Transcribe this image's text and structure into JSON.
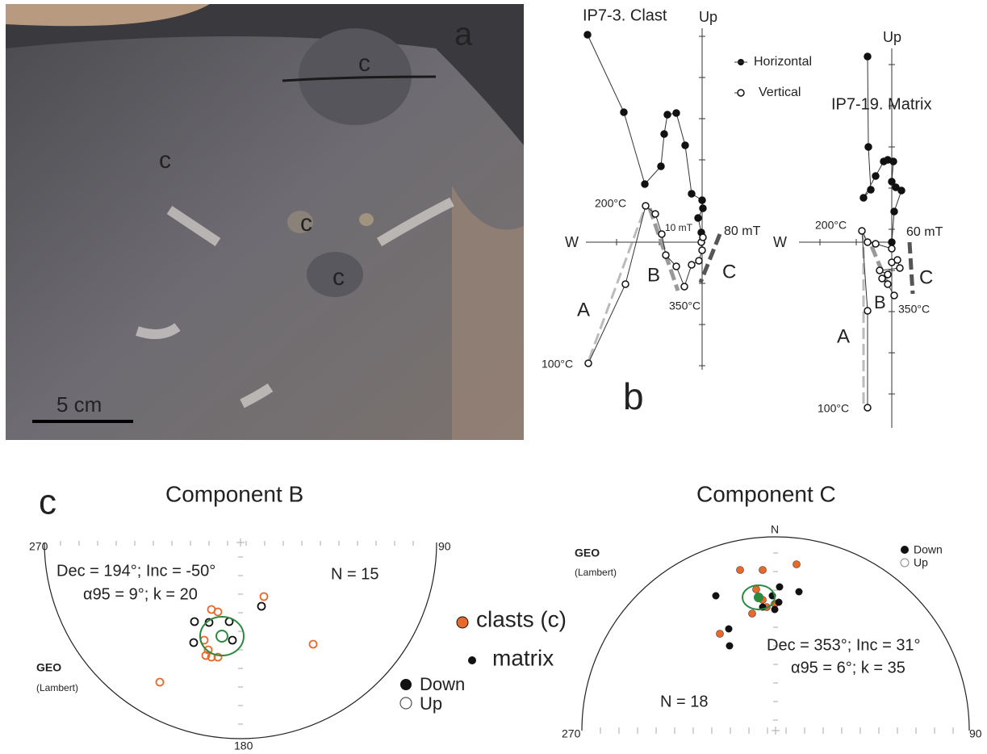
{
  "panel_a": {
    "label": "a",
    "clast_labels": [
      "c",
      "c",
      "c",
      "c"
    ],
    "scale_bar": "5 cm"
  },
  "panel_b": {
    "label": "b",
    "clast_plot": {
      "title": "IP7-3. Clast",
      "up": "Up",
      "west": "W",
      "legend": [
        "Horizontal",
        "Vertical"
      ],
      "labels": {
        "t200": "200°C",
        "mt10": "10 mT",
        "mt80": "80 mT",
        "t350": "350°C",
        "t100": "100°C",
        "A": "A",
        "B": "B",
        "C": "C"
      }
    },
    "matrix_plot": {
      "title": "IP7-19. Matrix",
      "up": "Up",
      "west": "W",
      "labels": {
        "t200": "200°C",
        "mt60": "60 mT",
        "t350": "350°C",
        "t100": "100°C",
        "A": "A",
        "B": "B",
        "C": "C"
      }
    }
  },
  "panel_c": {
    "label": "c",
    "component_b": {
      "title": "Component B",
      "w": "270",
      "e": "90",
      "s": "180",
      "stats1": "Dec = 194°; Inc = -50°",
      "stats2": "α95 = 9°; k = 20",
      "n": "N = 15",
      "proj": "GEO",
      "proj2": "(Lambert)",
      "legend": [
        "Down",
        "Up"
      ]
    },
    "legend": [
      "clasts (c)",
      "matrix"
    ],
    "component_c": {
      "title": "Component C",
      "n_label": "N",
      "w": "270",
      "e": "90",
      "stats1": "Dec = 353°; Inc = 31°",
      "stats2": "α95 = 6°; k = 35",
      "n": "N = 18",
      "proj": "GEO",
      "proj2": "(Lambert)",
      "legend": [
        "Down",
        "Up"
      ]
    }
  }
}
